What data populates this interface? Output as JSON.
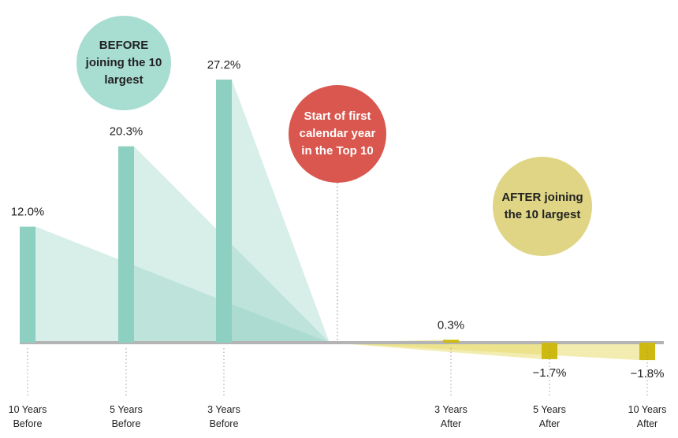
{
  "chart_data": {
    "type": "bar",
    "categories": [
      "10 Years Before",
      "5 Years Before",
      "3 Years Before",
      "3 Years After",
      "5 Years After",
      "10 Years After"
    ],
    "values": [
      12.0,
      20.3,
      27.2,
      0.3,
      -1.7,
      -1.8
    ],
    "value_labels": [
      "12.0%",
      "20.3%",
      "27.2%",
      "0.3%",
      "−1.7%",
      "−1.8%"
    ],
    "colors": [
      "#8dcfc1",
      "#8dcfc1",
      "#8dcfc1",
      "#cdb90f",
      "#cdb90f",
      "#cdb90f"
    ],
    "annotations": [
      "BEFORE joining the 10 largest",
      "Start of first calendar year in the Top 10",
      "AFTER joining the 10 largest"
    ]
  }
}
